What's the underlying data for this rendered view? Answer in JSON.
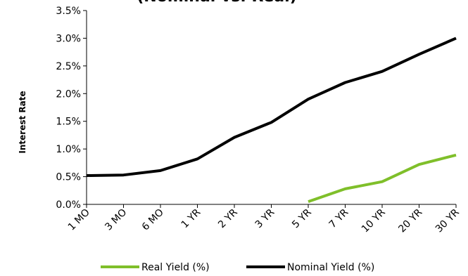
{
  "chart_data": {
    "type": "line",
    "title": "(Nominal vs. Real)",
    "xlabel": "",
    "ylabel": "Interest Rate",
    "categories": [
      "1 MO",
      "3 MO",
      "6 MO",
      "1 YR",
      "2 YR",
      "3 YR",
      "5 YR",
      "7 YR",
      "10 YR",
      "20 YR",
      "30 YR"
    ],
    "y_ticks": [
      "0.0%",
      "0.5%",
      "1.0%",
      "1.5%",
      "2.0%",
      "2.5%",
      "3.0%",
      "3.5%"
    ],
    "ylim": [
      0,
      3.5
    ],
    "grid": false,
    "legend_position": "bottom",
    "series": [
      {
        "name": "Real Yield (%)",
        "color": "#7fbf2a",
        "values": [
          null,
          null,
          null,
          null,
          null,
          null,
          0.05,
          0.28,
          0.41,
          0.72,
          0.89
        ]
      },
      {
        "name": "Nominal Yield (%)",
        "color": "#000000",
        "values": [
          0.52,
          0.53,
          0.61,
          0.82,
          1.21,
          1.48,
          1.9,
          2.2,
          2.4,
          2.71,
          3.0
        ]
      }
    ]
  }
}
